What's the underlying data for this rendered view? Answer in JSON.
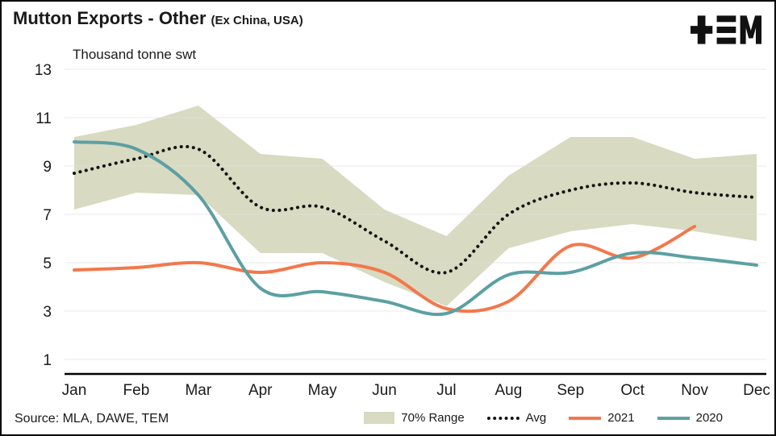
{
  "header": {
    "title": "Mutton Exports - Other",
    "subtitle": "(Ex China, USA)",
    "units_label": "Thousand tonne swt"
  },
  "logo": {
    "name": "TEM"
  },
  "footer": {
    "source": "Source: MLA, DAWE, TEM"
  },
  "colors": {
    "band": "#d8dac1",
    "avg": "#141414",
    "s2021": "#f2784b",
    "s2020": "#5ca0a3",
    "grid": "#e0e0e0",
    "axis": "#000000",
    "text": "#1a1a1a"
  },
  "chart_data": {
    "type": "line",
    "title": "Mutton Exports - Other (Ex China, USA)",
    "ylabel": "Thousand tonne swt",
    "xlabel": "",
    "categories": [
      "Jan",
      "Feb",
      "Mar",
      "Apr",
      "May",
      "Jun",
      "Jul",
      "Aug",
      "Sep",
      "Oct",
      "Nov",
      "Dec"
    ],
    "ylim": [
      0.4,
      13
    ],
    "yticks": [
      1,
      3,
      5,
      7,
      9,
      11,
      13
    ],
    "grid": true,
    "band": {
      "name": "70% Range",
      "upper": [
        10.2,
        10.7,
        11.5,
        9.5,
        9.3,
        7.2,
        6.1,
        8.6,
        10.2,
        10.2,
        9.3,
        9.5
      ],
      "lower": [
        7.2,
        7.9,
        7.8,
        5.4,
        5.4,
        4.2,
        3.2,
        5.6,
        6.3,
        6.6,
        6.3,
        5.9
      ]
    },
    "series": [
      {
        "name": "Avg",
        "style": "dotted",
        "color_key": "avg",
        "values": [
          8.7,
          9.3,
          9.7,
          7.3,
          7.3,
          5.9,
          4.6,
          7.0,
          8.0,
          8.3,
          7.9,
          7.7
        ]
      },
      {
        "name": "2021",
        "style": "solid",
        "color_key": "s2021",
        "values": [
          4.7,
          4.8,
          5.0,
          4.6,
          5.0,
          4.6,
          3.1,
          3.4,
          5.7,
          5.2,
          6.5,
          null
        ]
      },
      {
        "name": "2020",
        "style": "solid",
        "color_key": "s2020",
        "values": [
          10.0,
          9.7,
          7.8,
          3.95,
          3.8,
          3.4,
          2.9,
          4.5,
          4.6,
          5.4,
          5.2,
          4.9
        ]
      }
    ],
    "legend": [
      {
        "label": "70% Range",
        "swatch": "band"
      },
      {
        "label": "Avg",
        "swatch": "dotted"
      },
      {
        "label": "2021",
        "swatch": "s2021"
      },
      {
        "label": "2020",
        "swatch": "s2020"
      }
    ],
    "legend_position": "bottom"
  }
}
